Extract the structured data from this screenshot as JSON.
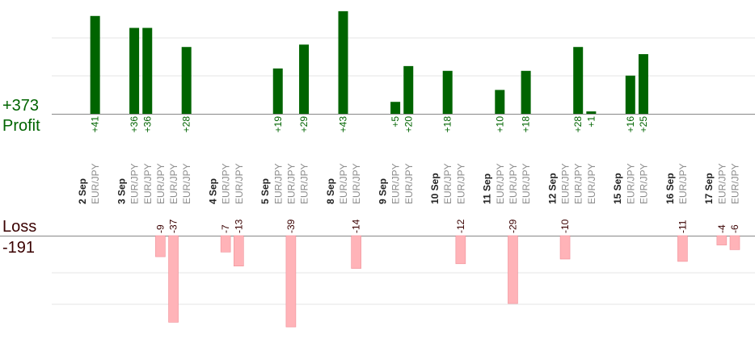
{
  "summary": {
    "profit_total": "+373",
    "profit_label": "Profit",
    "loss_label": "Loss",
    "loss_total": "-191"
  },
  "colors": {
    "profit_bar": "#006400",
    "loss_bar": "#ffb3b8",
    "profit_text": "#006400",
    "loss_text": "#3a0000",
    "date_text": "#222222",
    "pair_text": "#8c8c8c",
    "grid": "#e6e6e6",
    "axis": "#888888"
  },
  "chart_data": {
    "type": "bar",
    "title": "",
    "grid": true,
    "profit_axis_range": [
      0,
      46
    ],
    "loss_axis_range": [
      0,
      40
    ],
    "columns": [
      {
        "date": "2 Sep",
        "pair": "",
        "value": null
      },
      {
        "date": "",
        "pair": "EUR/JPY",
        "value": 41
      },
      {
        "date": "",
        "pair": "",
        "value": null
      },
      {
        "date": "3 Sep",
        "pair": "",
        "value": null
      },
      {
        "date": "",
        "pair": "EUR/JPY",
        "value": 36
      },
      {
        "date": "",
        "pair": "EUR/JPY",
        "value": 36
      },
      {
        "date": "",
        "pair": "EUR/JPY",
        "value": -9
      },
      {
        "date": "",
        "pair": "EUR/JPY",
        "value": -37
      },
      {
        "date": "",
        "pair": "EUR/JPY",
        "value": 28
      },
      {
        "date": "",
        "pair": "",
        "value": null
      },
      {
        "date": "4 Sep",
        "pair": "",
        "value": null
      },
      {
        "date": "",
        "pair": "EUR/JPY",
        "value": -7
      },
      {
        "date": "",
        "pair": "EUR/JPY",
        "value": -13
      },
      {
        "date": "",
        "pair": "",
        "value": null
      },
      {
        "date": "5 Sep",
        "pair": "",
        "value": null
      },
      {
        "date": "",
        "pair": "EUR/JPY",
        "value": 19
      },
      {
        "date": "",
        "pair": "EUR/JPY",
        "value": -39
      },
      {
        "date": "",
        "pair": "EUR/JPY",
        "value": 29
      },
      {
        "date": "",
        "pair": "",
        "value": null
      },
      {
        "date": "8 Sep",
        "pair": "",
        "value": null
      },
      {
        "date": "",
        "pair": "EUR/JPY",
        "value": 43
      },
      {
        "date": "",
        "pair": "EUR/JPY",
        "value": -14
      },
      {
        "date": "",
        "pair": "",
        "value": null
      },
      {
        "date": "9 Sep",
        "pair": "",
        "value": null
      },
      {
        "date": "",
        "pair": "EUR/JPY",
        "value": 5
      },
      {
        "date": "",
        "pair": "EUR/JPY",
        "value": 20
      },
      {
        "date": "",
        "pair": "",
        "value": null
      },
      {
        "date": "10 Sep",
        "pair": "",
        "value": null
      },
      {
        "date": "",
        "pair": "EUR/JPY",
        "value": 18
      },
      {
        "date": "",
        "pair": "EUR/JPY",
        "value": -12
      },
      {
        "date": "",
        "pair": "",
        "value": null
      },
      {
        "date": "11 Sep",
        "pair": "",
        "value": null
      },
      {
        "date": "",
        "pair": "EUR/JPY",
        "value": 10
      },
      {
        "date": "",
        "pair": "EUR/JPY",
        "value": -29
      },
      {
        "date": "",
        "pair": "EUR/JPY",
        "value": 18
      },
      {
        "date": "",
        "pair": "",
        "value": null
      },
      {
        "date": "12 Sep",
        "pair": "",
        "value": null
      },
      {
        "date": "",
        "pair": "EUR/JPY",
        "value": -10
      },
      {
        "date": "",
        "pair": "EUR/JPY",
        "value": 28
      },
      {
        "date": "",
        "pair": "EUR/JPY",
        "value": 1
      },
      {
        "date": "",
        "pair": "",
        "value": null
      },
      {
        "date": "15 Sep",
        "pair": "",
        "value": null
      },
      {
        "date": "",
        "pair": "EUR/JPY",
        "value": 16
      },
      {
        "date": "",
        "pair": "EUR/JPY",
        "value": 25
      },
      {
        "date": "",
        "pair": "",
        "value": null
      },
      {
        "date": "16 Sep",
        "pair": "",
        "value": null
      },
      {
        "date": "",
        "pair": "EUR/JPY",
        "value": -11
      },
      {
        "date": "",
        "pair": "",
        "value": null
      },
      {
        "date": "17 Sep",
        "pair": "",
        "value": null
      },
      {
        "date": "",
        "pair": "EUR/JPY",
        "value": -4
      },
      {
        "date": "",
        "pair": "EUR/JPY",
        "value": -6
      }
    ]
  }
}
